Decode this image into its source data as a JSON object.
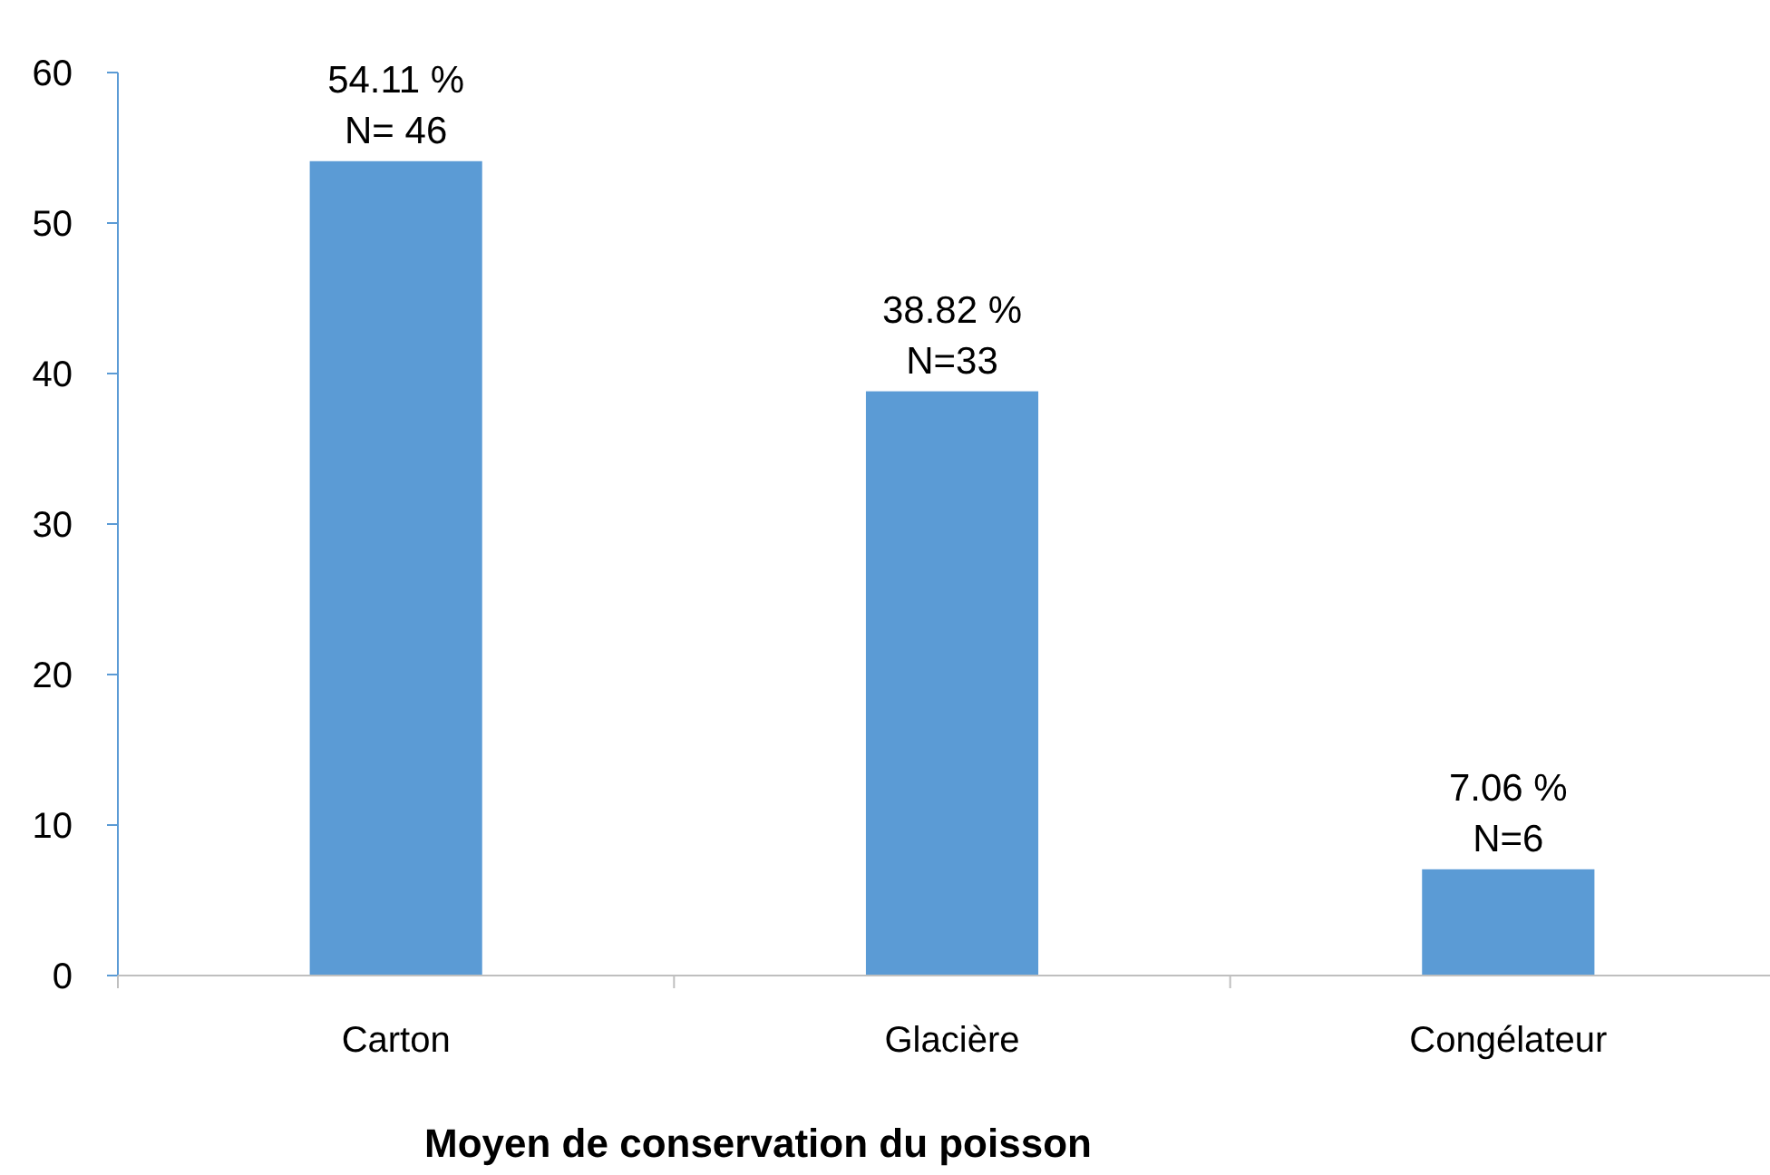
{
  "chart_data": {
    "type": "bar",
    "xlabel": "Moyen de conservation du poisson",
    "categories": [
      "Carton",
      "Glacière",
      "Congélateur"
    ],
    "values": [
      54.11,
      38.82,
      7.06
    ],
    "value_labels": [
      "54.11 %\nN= 46",
      "38.82 %\nN=33",
      "7.06 %\nN=6"
    ],
    "color": "#5b9bd5",
    "ylim": [
      0,
      60
    ],
    "yticks": [
      0,
      10,
      20,
      30,
      40,
      50,
      60
    ],
    "grid": false
  }
}
